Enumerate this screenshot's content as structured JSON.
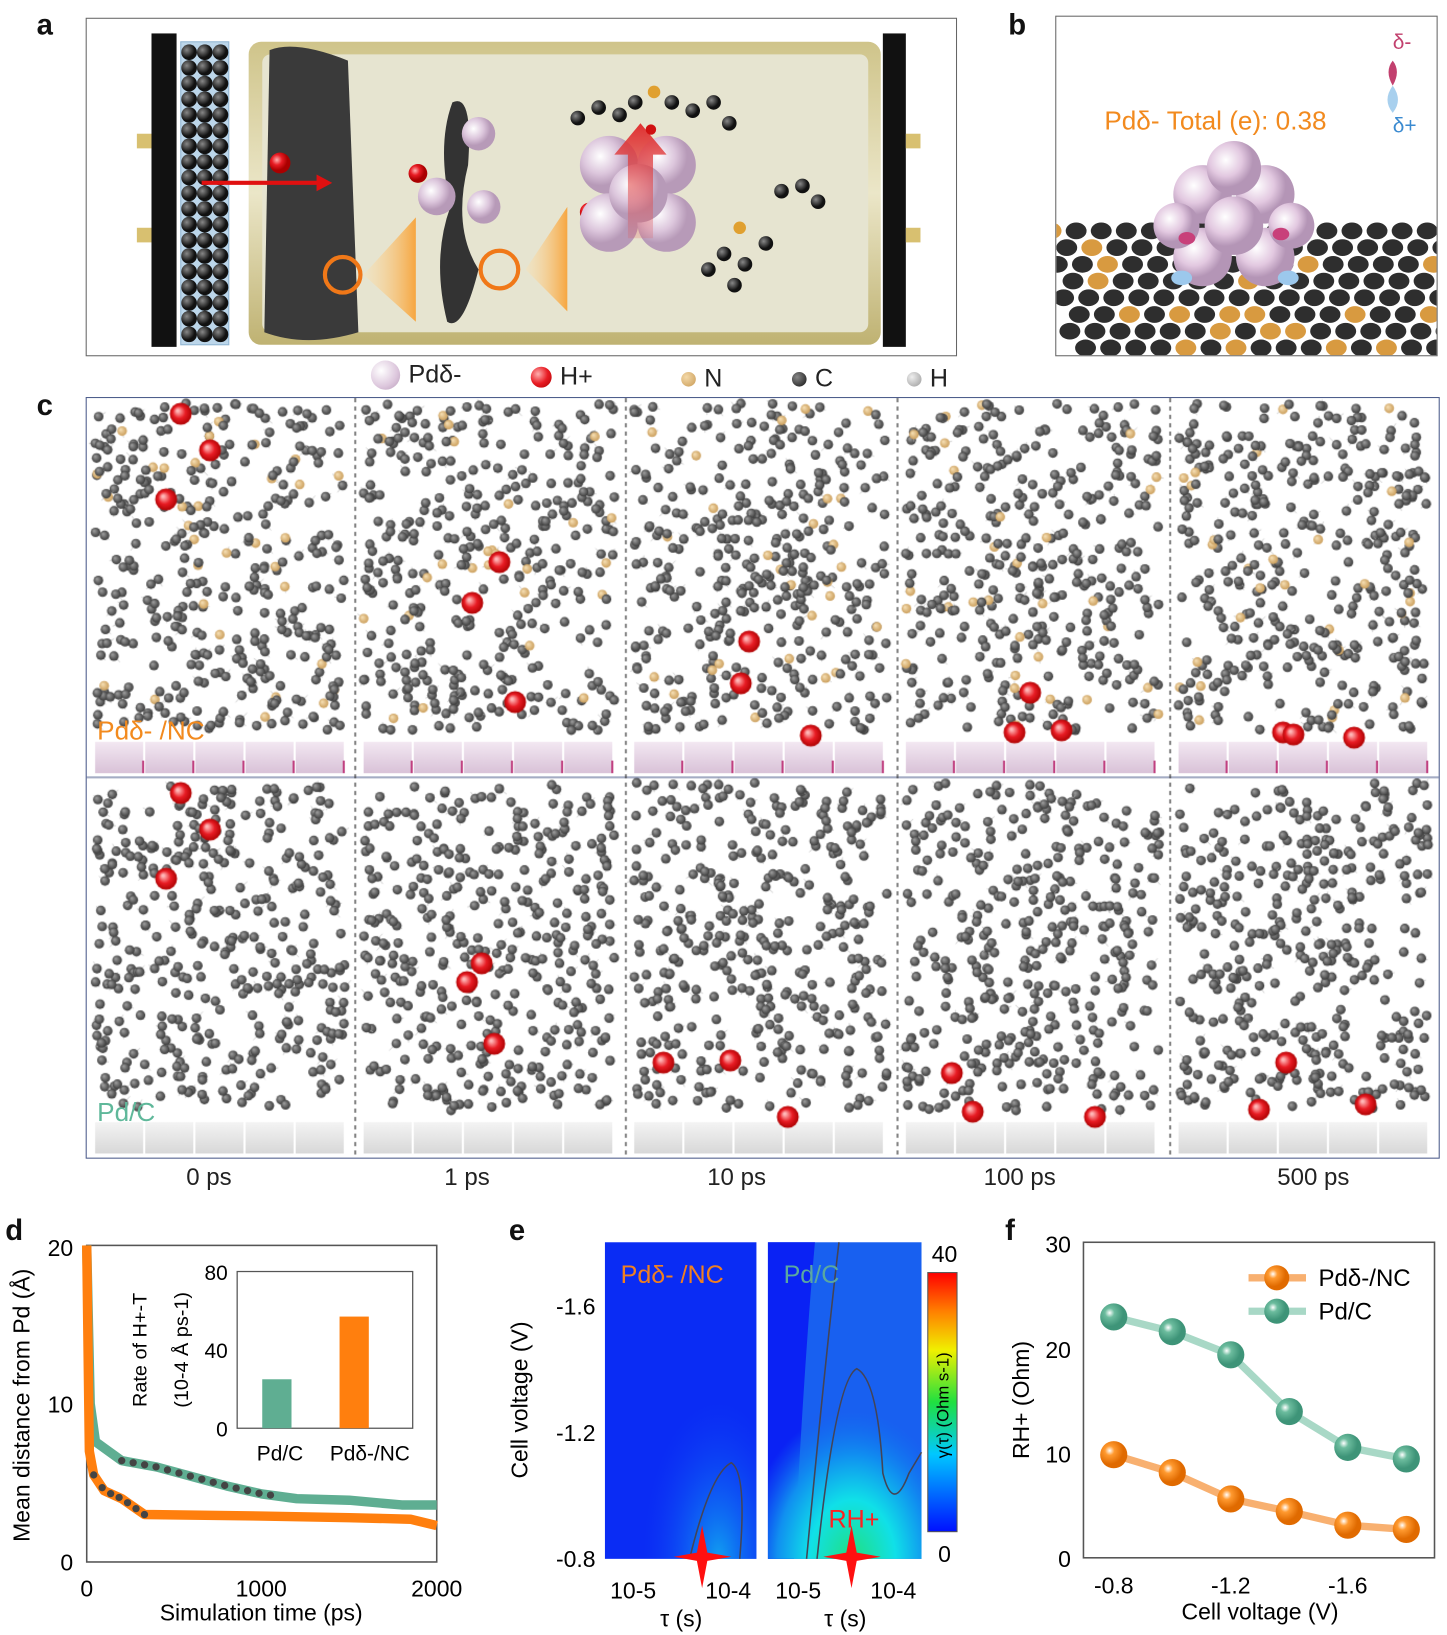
{
  "panel_labels": {
    "a": "a",
    "b": "b",
    "c": "c",
    "d": "d",
    "e": "e",
    "f": "f"
  },
  "panel_b": {
    "charge_label": "Pdδ- Total (e): 0.38",
    "delta_minus": "δ-",
    "delta_plus": "δ+"
  },
  "legend": [
    {
      "label": "Pdδ-",
      "color": "#e8d6e6"
    },
    {
      "label": "H+",
      "color": "#e8202a"
    },
    {
      "label": "N",
      "color": "#c89a55"
    },
    {
      "label": "C",
      "color": "#333333"
    },
    {
      "label": "H",
      "color": "#aaaaaa"
    }
  ],
  "panel_c": {
    "rows": [
      {
        "label": "Pdδ- /NC",
        "color": "#f28a1e"
      },
      {
        "label": "Pd/C",
        "color": "#5fb89a"
      }
    ],
    "times": [
      "0 ps",
      "1 ps",
      "10 ps",
      "100 ps",
      "500 ps"
    ]
  },
  "colors": {
    "orange": "#ff7f0e",
    "green": "#5fae92"
  },
  "chart_data": [
    {
      "type": "line",
      "title": "",
      "xlabel": "Simulation time (ps)",
      "ylabel": "Mean distance from Pd (Å)",
      "xlim": [
        0,
        2000
      ],
      "ylim": [
        0,
        20
      ],
      "xticks": [
        "0",
        "1000",
        "2000"
      ],
      "yticks": [
        "0",
        "10",
        "20"
      ],
      "series": [
        {
          "name": "Pd/C",
          "color": "#5fae92",
          "x": [
            0,
            20,
            50,
            100,
            200,
            400,
            600,
            800,
            1000,
            1200,
            1500,
            1800,
            2000
          ],
          "y": [
            20,
            10,
            7.6,
            7.2,
            6.4,
            6.0,
            5.4,
            4.8,
            4.3,
            4.0,
            3.9,
            3.6,
            3.6
          ]
        },
        {
          "name": "Pdδ-/NC",
          "color": "#ff7f0e",
          "x": [
            0,
            15,
            40,
            100,
            200,
            330,
            1000,
            1500,
            1850,
            2000
          ],
          "y": [
            20,
            7,
            5.5,
            4.5,
            4.0,
            3.0,
            2.9,
            2.8,
            2.7,
            2.3
          ]
        }
      ],
      "fits": [
        {
          "series": "Pd/C",
          "x": [
            200,
            1050
          ]
        },
        {
          "series": "Pdδ-/NC",
          "x": [
            40,
            330
          ]
        }
      ],
      "inset": {
        "type": "bar",
        "categories": [
          "Pd/C",
          "Pdδ-/NC"
        ],
        "values": [
          25,
          57
        ],
        "ylabel": "Rate of H+-T",
        "ylabel2": "(10-4 Å ps-1)",
        "ylim": [
          0,
          80
        ],
        "yticks": [
          "0",
          "40",
          "80"
        ]
      }
    },
    {
      "type": "heatmap",
      "panels": [
        "Pdδ- /NC",
        "Pd/C"
      ],
      "xlabel": "τ (s)",
      "ylabel": "Cell voltage (V)",
      "xticks": [
        "10-5",
        "10-4"
      ],
      "yticks": [
        "-1.6",
        "-1.2",
        "-0.8"
      ],
      "ylim": [
        -0.8,
        -1.8
      ],
      "colorbar": {
        "label": "γ(τ) (Ohm s-1)",
        "min": "0",
        "max": "40"
      },
      "annotation": "RH+"
    },
    {
      "type": "line",
      "xlabel": "Cell voltage (V)",
      "ylabel": "RH+ (Ohm)",
      "x": [
        -0.8,
        -1.0,
        -1.2,
        -1.4,
        -1.6,
        -1.8
      ],
      "xticks": [
        "-0.8",
        "-1.2",
        "-1.6"
      ],
      "yticks": [
        "0",
        "10",
        "20",
        "30"
      ],
      "ylim": [
        0,
        30
      ],
      "legend_position": "top-right",
      "series": [
        {
          "name": "Pdδ-/NC",
          "color": "#ff7f0e",
          "values": [
            9.8,
            8.1,
            5.6,
            4.4,
            3.1,
            2.7
          ]
        },
        {
          "name": "Pd/C",
          "color": "#5fae92",
          "values": [
            22.9,
            21.5,
            19.3,
            13.9,
            10.5,
            9.4
          ]
        }
      ]
    }
  ]
}
